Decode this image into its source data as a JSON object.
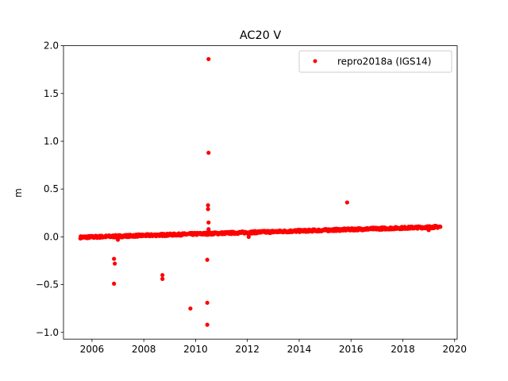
{
  "chart_data": {
    "type": "scatter",
    "title": "AC20 V",
    "xlabel": "",
    "ylabel": "m",
    "xlim": [
      2004.9,
      2020.1
    ],
    "ylim": [
      -1.07,
      2.0
    ],
    "xticks": [
      2006,
      2008,
      2010,
      2012,
      2014,
      2016,
      2018,
      2020
    ],
    "yticks": [
      -1.0,
      -0.5,
      0.0,
      0.5,
      1.0,
      1.5,
      2.0
    ],
    "ytick_labels": [
      "−1.0",
      "−0.5",
      "0.0",
      "0.5",
      "1.0",
      "1.5",
      "2.0"
    ],
    "grid": false,
    "legend_position": "top-right",
    "series": [
      {
        "name": "repro2018a (IGS14)",
        "color": "#ff0000",
        "marker": "circle",
        "trend": {
          "x_start": 2005.55,
          "x_end": 2019.45,
          "y_start": -0.005,
          "y_end": 0.105,
          "scatter": 0.012
        },
        "outliers": [
          {
            "x": 2010.5,
            "y": 1.86
          },
          {
            "x": 2010.5,
            "y": 0.88
          },
          {
            "x": 2010.48,
            "y": 0.33
          },
          {
            "x": 2010.48,
            "y": 0.29
          },
          {
            "x": 2010.5,
            "y": 0.15
          },
          {
            "x": 2010.5,
            "y": 0.08
          },
          {
            "x": 2015.85,
            "y": 0.36
          },
          {
            "x": 2006.85,
            "y": -0.23
          },
          {
            "x": 2006.88,
            "y": -0.28
          },
          {
            "x": 2006.85,
            "y": -0.49
          },
          {
            "x": 2008.72,
            "y": -0.4
          },
          {
            "x": 2008.72,
            "y": -0.44
          },
          {
            "x": 2009.8,
            "y": -0.75
          },
          {
            "x": 2010.45,
            "y": -0.24
          },
          {
            "x": 2010.45,
            "y": -0.69
          },
          {
            "x": 2010.45,
            "y": -0.92
          },
          {
            "x": 2012.05,
            "y": 0.0
          },
          {
            "x": 2007.0,
            "y": -0.03
          },
          {
            "x": 2019.0,
            "y": 0.07
          }
        ]
      }
    ]
  }
}
